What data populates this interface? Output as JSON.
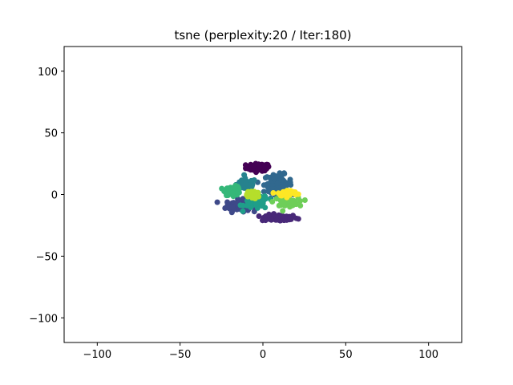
{
  "chart_data": {
    "type": "scatter",
    "title": "tsne (perplexity:20 / Iter:180)",
    "xlabel": "",
    "ylabel": "",
    "xlim": [
      -120,
      120
    ],
    "ylim": [
      -120,
      120
    ],
    "xticks": [
      -100,
      -50,
      0,
      50,
      100
    ],
    "yticks": [
      -100,
      -50,
      0,
      50,
      100
    ],
    "xtick_labels": [
      "−100",
      "−50",
      "0",
      "50",
      "100"
    ],
    "ytick_labels": [
      "−100",
      "−50",
      "0",
      "50",
      "100"
    ],
    "grid": false,
    "legend": false,
    "colormap": "viridis",
    "clusters": [
      {
        "color": "#440154",
        "center": [
          -3,
          22
        ],
        "spread": [
          6,
          2.5
        ],
        "count": 70
      },
      {
        "color": "#482878",
        "center": [
          10,
          -19
        ],
        "spread": [
          9,
          2.2
        ],
        "count": 80
      },
      {
        "color": "#3e4989",
        "center": [
          -15,
          -9
        ],
        "spread": [
          6,
          4
        ],
        "count": 90
      },
      {
        "color": "#31688e",
        "center": [
          9,
          9
        ],
        "spread": [
          7,
          6
        ],
        "count": 90
      },
      {
        "color": "#26828e",
        "center": [
          -10,
          8
        ],
        "spread": [
          5,
          4
        ],
        "count": 60
      },
      {
        "color": "#1f9e89",
        "center": [
          -4,
          -6
        ],
        "spread": [
          6,
          5
        ],
        "count": 70
      },
      {
        "color": "#35b779",
        "center": [
          -18,
          3
        ],
        "spread": [
          4,
          3
        ],
        "count": 60
      },
      {
        "color": "#6ece58",
        "center": [
          14,
          -6
        ],
        "spread": [
          6,
          3
        ],
        "count": 70
      },
      {
        "color": "#b5de2b",
        "center": [
          -6,
          0
        ],
        "spread": [
          3,
          3
        ],
        "count": 50
      },
      {
        "color": "#fde725",
        "center": [
          15,
          1
        ],
        "spread": [
          5,
          2
        ],
        "count": 50
      }
    ]
  }
}
